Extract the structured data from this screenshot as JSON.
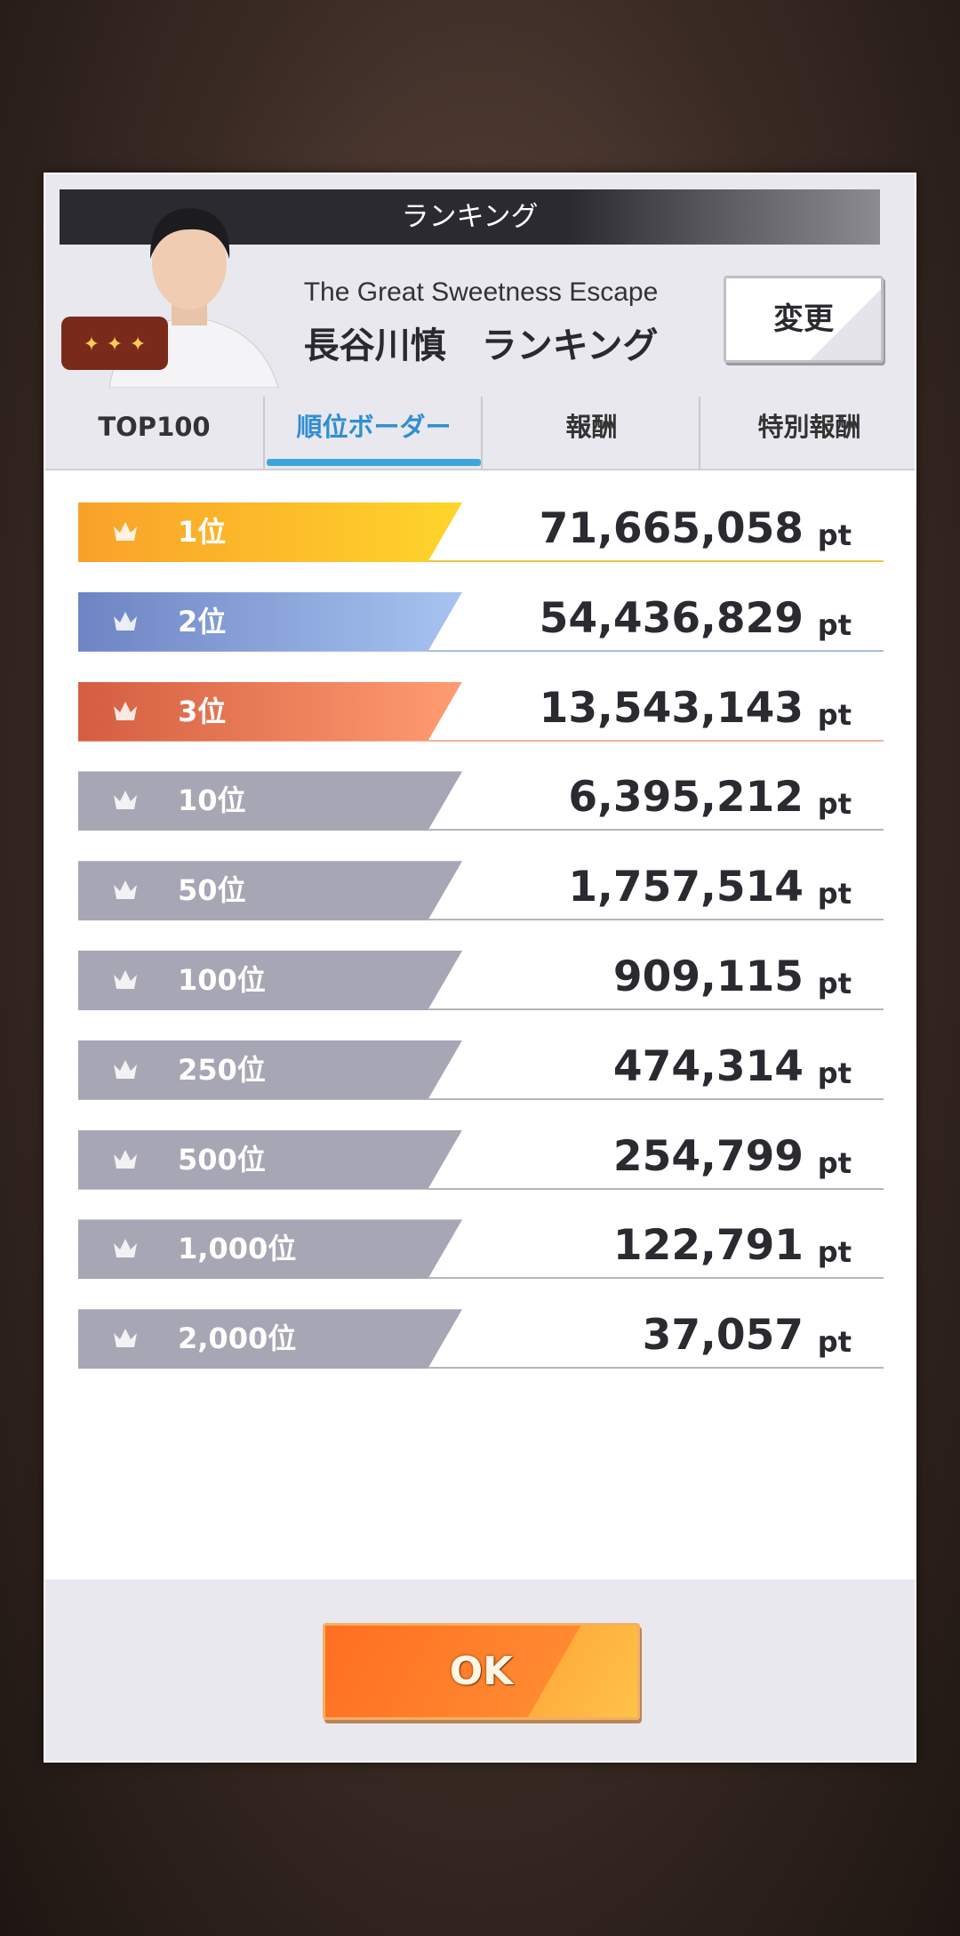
{
  "header": {
    "title": "ランキング",
    "event_name": "The Great Sweetness Escape",
    "ranking_title": "長谷川慎　ランキング",
    "change_button": "変更"
  },
  "tabs": [
    "TOP100",
    "順位ボーダー",
    "報酬",
    "特別報酬"
  ],
  "active_tab": 1,
  "unit": "pt",
  "rows": [
    {
      "rank": "1位",
      "points": "71,665,058"
    },
    {
      "rank": "2位",
      "points": "54,436,829"
    },
    {
      "rank": "3位",
      "points": "13,543,143"
    },
    {
      "rank": "10位",
      "points": "6,395,212"
    },
    {
      "rank": "50位",
      "points": "1,757,514"
    },
    {
      "rank": "100位",
      "points": "909,115"
    },
    {
      "rank": "250位",
      "points": "474,314"
    },
    {
      "rank": "500位",
      "points": "254,799"
    },
    {
      "rank": "1,000位",
      "points": "122,791"
    },
    {
      "rank": "2,000位",
      "points": "37,057"
    }
  ],
  "ok_button": "OK"
}
